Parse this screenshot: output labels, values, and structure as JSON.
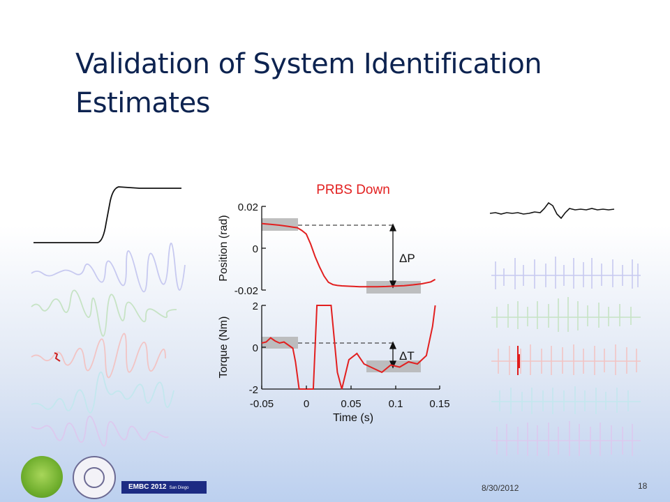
{
  "slide": {
    "title_line1": "Validation of System Identification",
    "title_line2": "Estimates",
    "date": "8/30/2012",
    "page_number": "18",
    "conference_badge": "EMBC 2012",
    "conference_location": "San Diego"
  },
  "colors": {
    "title": "#0d2350",
    "data_line": "#e21f1f",
    "highlight_box": "#b4b4b4",
    "badge_bg": "#1c2b83"
  },
  "chart_data": {
    "type": "line",
    "title": "PRBS Down",
    "xlabel": "Time (s)",
    "xlim": [
      -0.05,
      0.15
    ],
    "x_ticks": [
      "-0.05",
      "0",
      "0.05",
      "0.1",
      "0.15"
    ],
    "panels": [
      {
        "ylabel": "Position (rad)",
        "ylim": [
          -0.02,
          0.02
        ],
        "y_ticks": [
          "0.02",
          "0",
          "-0.02"
        ],
        "x": [
          -0.05,
          -0.045,
          -0.04,
          -0.035,
          -0.03,
          -0.025,
          -0.02,
          -0.015,
          -0.01,
          -0.005,
          0,
          0.005,
          0.01,
          0.015,
          0.02,
          0.025,
          0.03,
          0.035,
          0.04,
          0.05,
          0.06,
          0.07,
          0.08,
          0.09,
          0.1,
          0.11,
          0.12,
          0.13,
          0.14,
          0.145
        ],
        "y": [
          0.0118,
          0.0116,
          0.0114,
          0.0112,
          0.011,
          0.0107,
          0.0104,
          0.0101,
          0.0098,
          0.0085,
          0.0068,
          0.002,
          -0.004,
          -0.009,
          -0.0133,
          -0.0163,
          -0.0174,
          -0.0178,
          -0.018,
          -0.0182,
          -0.0184,
          -0.0184,
          -0.0184,
          -0.0183,
          -0.0181,
          -0.0179,
          -0.0175,
          -0.017,
          -0.0161,
          -0.0149
        ],
        "annotation": "ΔP"
      },
      {
        "ylabel": "Torque (Nm)",
        "ylim": [
          -2,
          2
        ],
        "y_ticks": [
          "2",
          "0",
          "-2"
        ],
        "x": [
          -0.05,
          -0.045,
          -0.04,
          -0.035,
          -0.03,
          -0.025,
          -0.02,
          -0.015,
          -0.012,
          -0.008,
          0.008,
          0.012,
          0.018,
          0.023,
          0.028,
          0.035,
          0.04,
          0.048,
          0.057,
          0.065,
          0.075,
          0.085,
          0.095,
          0.105,
          0.115,
          0.125,
          0.135,
          0.142,
          0.145
        ],
        "y": [
          0.2,
          0.25,
          0.45,
          0.3,
          0.2,
          0.25,
          0.1,
          -0.05,
          -0.7,
          -2.0,
          -2.0,
          2.0,
          2.0,
          2.0,
          2.0,
          -1.2,
          -2.0,
          -0.6,
          -0.3,
          -0.8,
          -1.0,
          -1.2,
          -0.85,
          -0.95,
          -0.7,
          -0.8,
          -0.4,
          1.0,
          2.0
        ],
        "annotation": "ΔT"
      }
    ]
  }
}
